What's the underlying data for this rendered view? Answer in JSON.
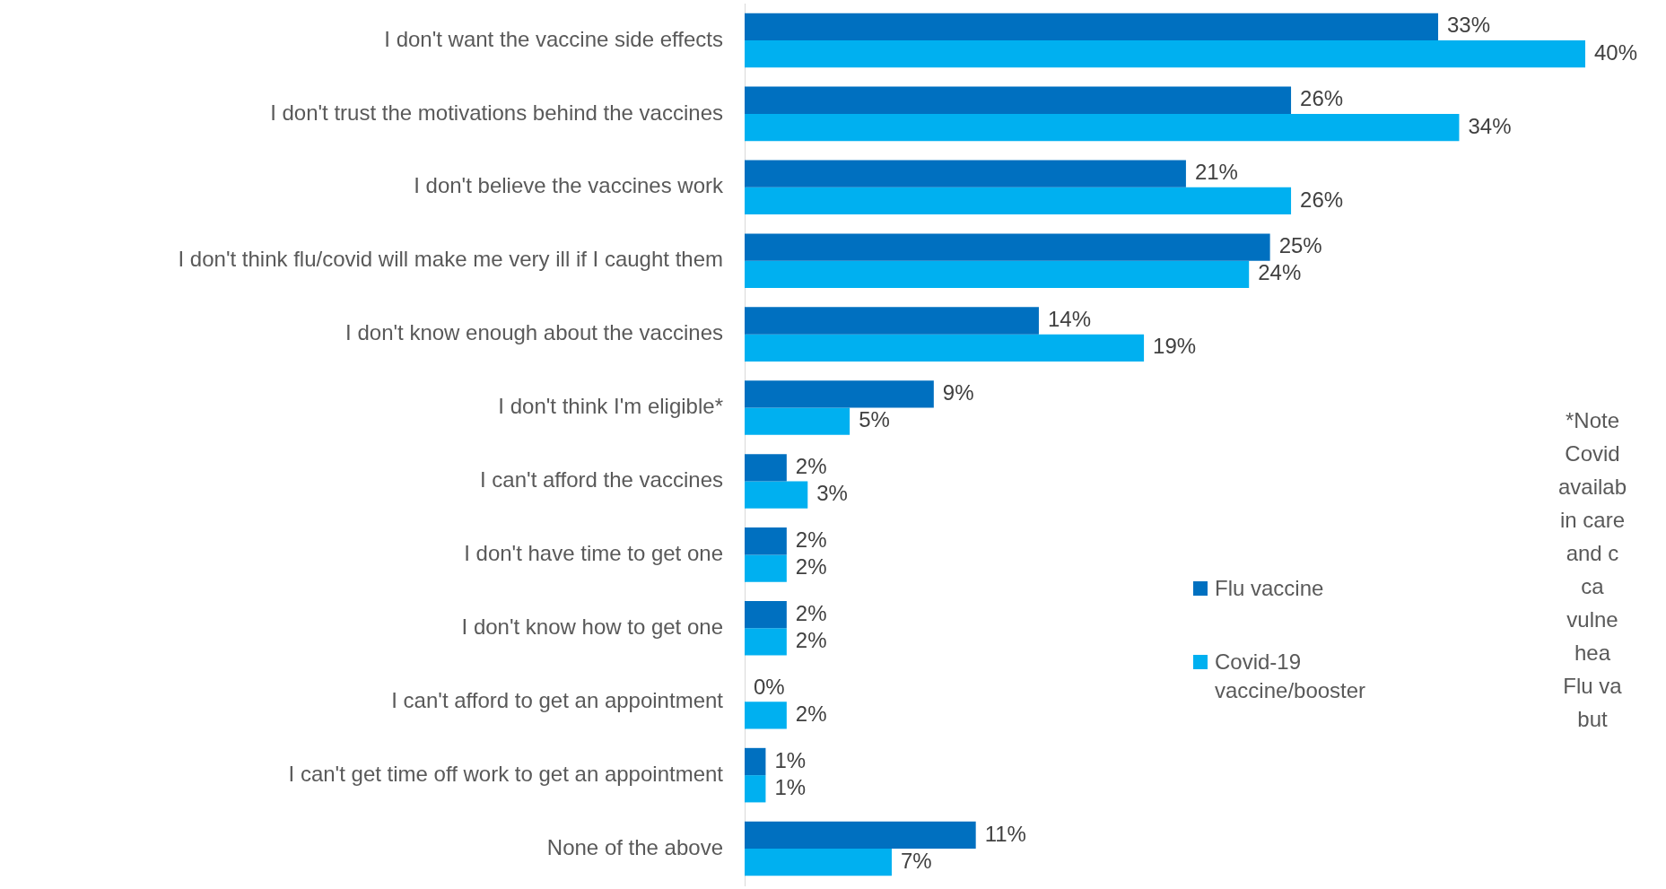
{
  "chart_data": {
    "type": "bar",
    "orientation": "horizontal",
    "categories": [
      "I don't want the vaccine side effects",
      "I don't trust the motivations behind the vaccines",
      "I don't believe the vaccines work",
      "I don't think flu/covid will make me very ill if I caught them",
      "I don't know enough about the vaccines",
      "I don't think I'm eligible*",
      "I can't afford the vaccines",
      "I don't have time to get one",
      "I don't know how to get one",
      "I can't afford to get an appointment",
      "I can't get time off work to get an appointment",
      "None of the above"
    ],
    "series": [
      {
        "name": "Flu vaccine",
        "color": "#0070c0",
        "values": [
          33,
          26,
          21,
          25,
          14,
          9,
          2,
          2,
          2,
          0,
          1,
          11
        ],
        "value_labels": [
          "33%",
          "26%",
          "21%",
          "25%",
          "14%",
          "9%",
          "2%",
          "2%",
          "2%",
          "0%",
          "1%",
          "11%"
        ]
      },
      {
        "name": "Covid-19 vaccine/booster",
        "color": "#00b0f0",
        "values": [
          40,
          34,
          26,
          24,
          19,
          5,
          3,
          2,
          2,
          2,
          1,
          7
        ],
        "value_labels": [
          "40%",
          "34%",
          "26%",
          "24%",
          "19%",
          "5%",
          "3%",
          "2%",
          "2%",
          "2%",
          "1%",
          "7%"
        ]
      }
    ],
    "legend": "right",
    "annotations": [
      "*Note\nCovid\navailab\nin care\nand c\nca\nvulne\nhea\nFlu va\nbut"
    ]
  }
}
